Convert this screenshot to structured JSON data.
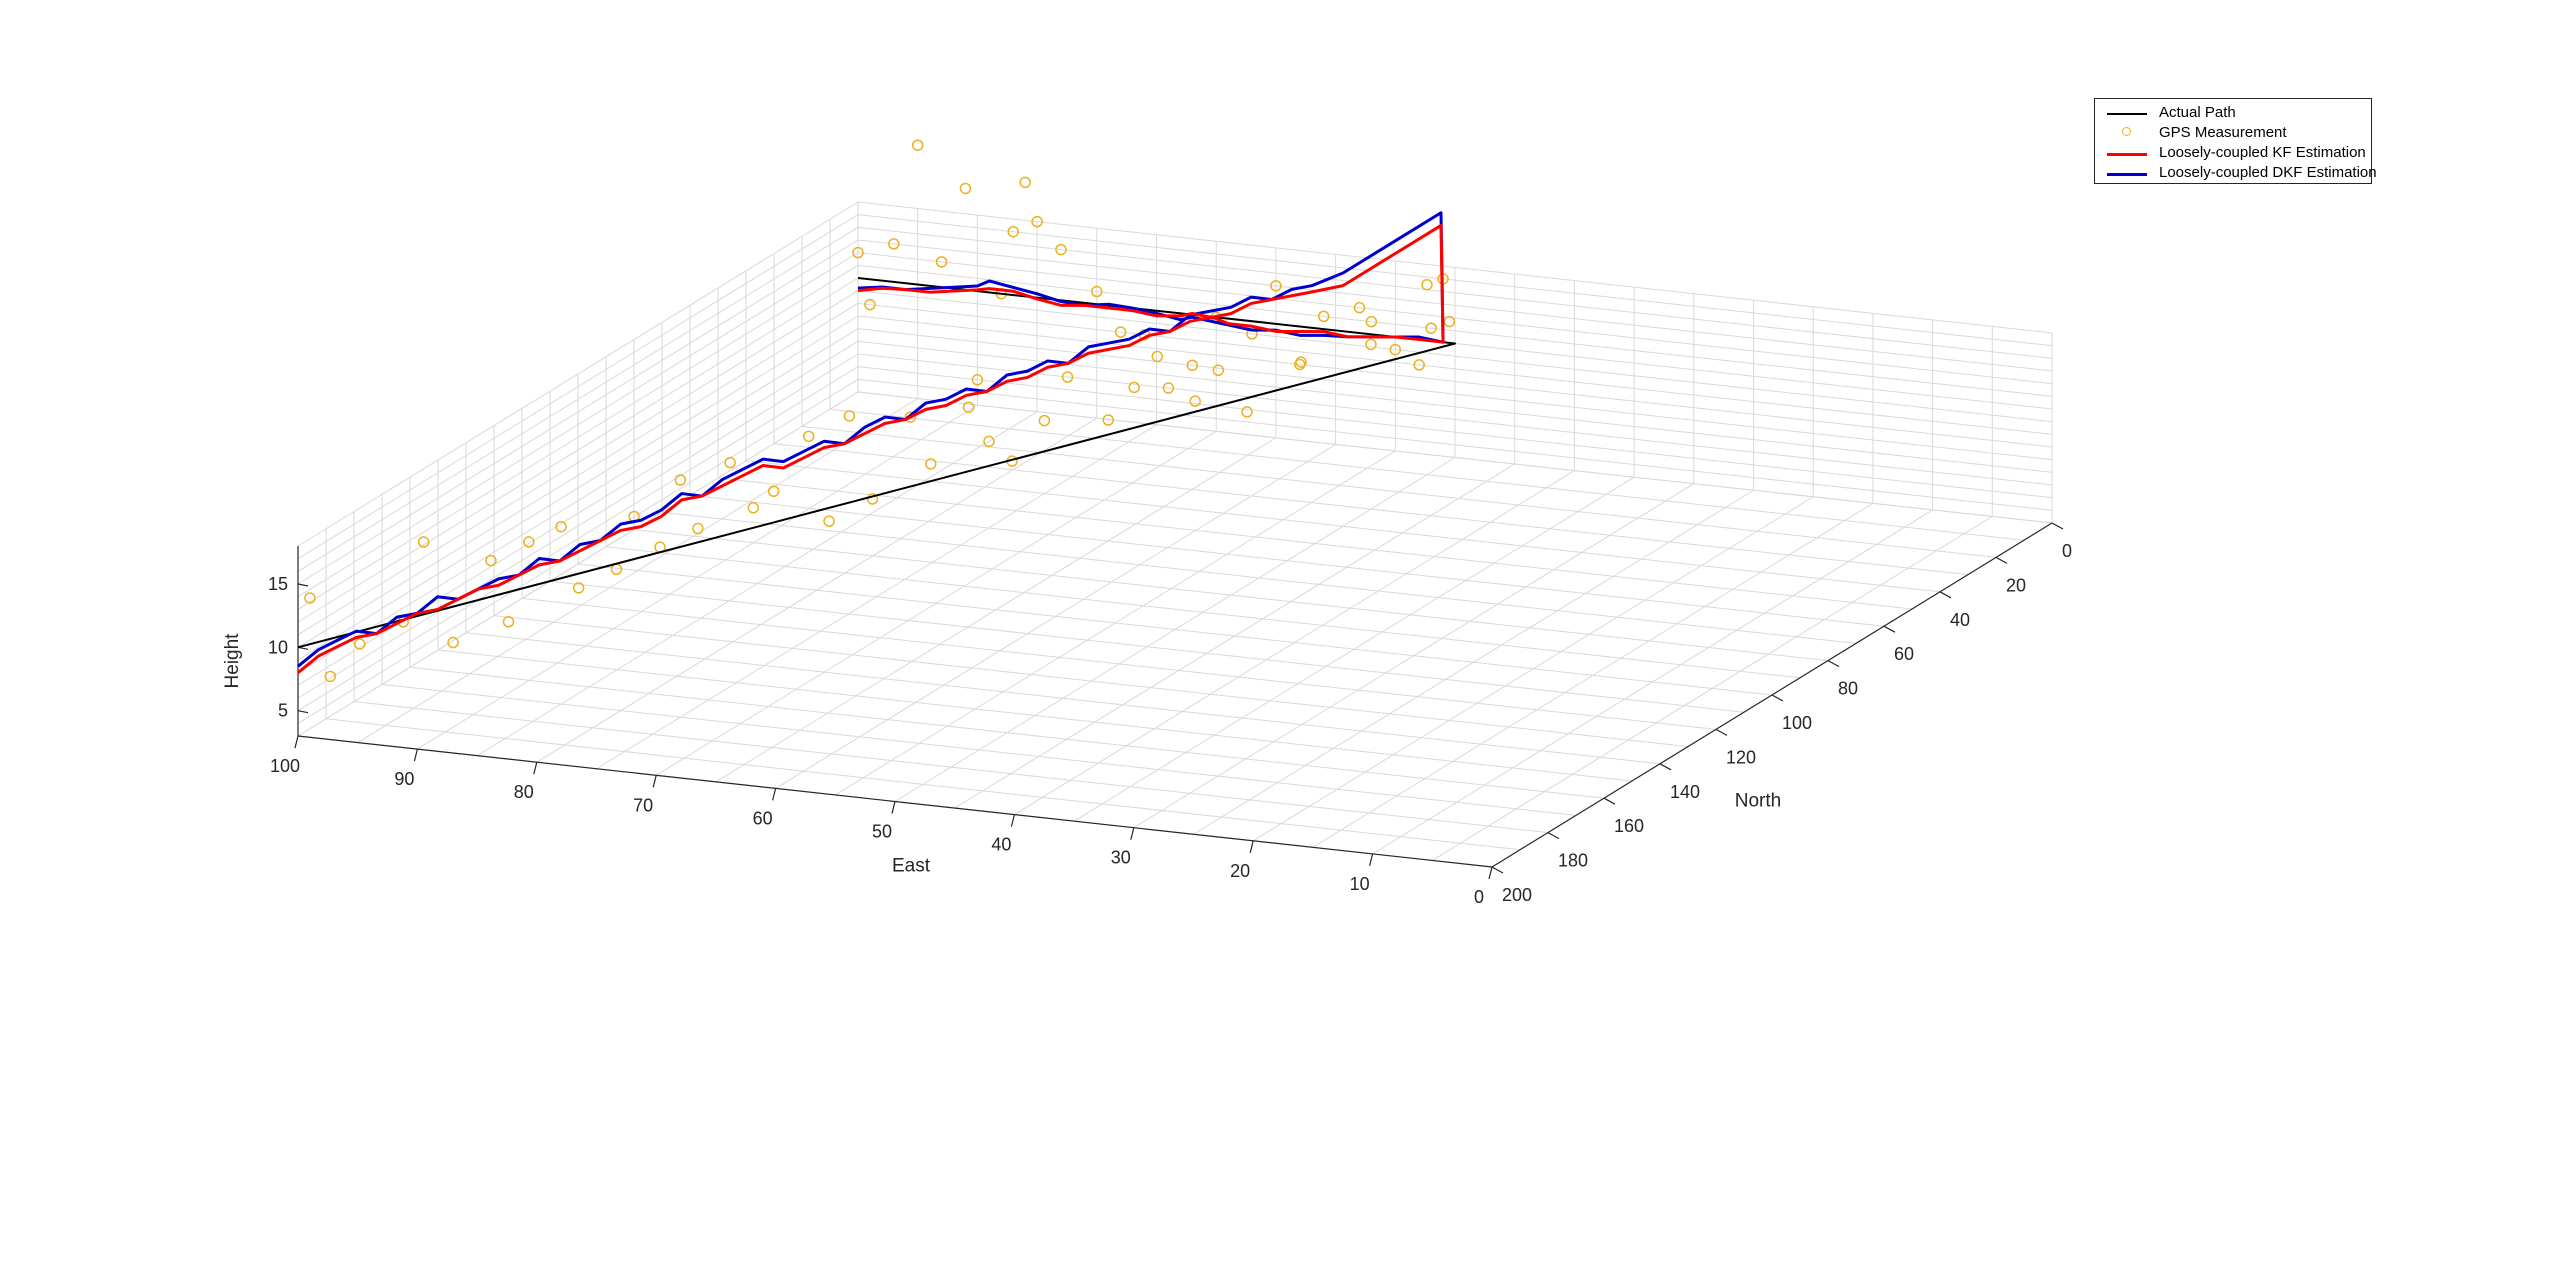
{
  "chart_data": {
    "type": "line",
    "projection": "3d",
    "xlabel": "East",
    "ylabel": "North",
    "zlabel": "Height",
    "xlim": [
      0,
      100
    ],
    "ylim": [
      0,
      200
    ],
    "zlim": [
      3,
      18
    ],
    "xticks": [
      "100",
      "90",
      "80",
      "70",
      "60",
      "50",
      "40",
      "30",
      "20",
      "10",
      "0"
    ],
    "yticks": [
      "0",
      "20",
      "40",
      "60",
      "80",
      "100",
      "120",
      "140",
      "160",
      "180",
      "200"
    ],
    "zticks": [
      "5",
      "10",
      "15"
    ],
    "grid": true,
    "legend_placement": "top-right",
    "colors": {
      "actual": "#000000",
      "gps": "#edb120",
      "kf": "#ff0000",
      "dkf": "#0000cc",
      "grid": "#d9d9d9",
      "axis": "#262626"
    },
    "series": [
      {
        "name": "Actual Path",
        "points": [
          [
            100,
            200,
            10
          ],
          [
            50,
            0,
            12
          ],
          [
            100,
            0,
            12
          ]
        ]
      },
      {
        "name": "GPS Measurement",
        "points": [
          [
            99,
            200,
            14
          ],
          [
            98,
            197,
            7.5
          ],
          [
            96,
            195,
            10
          ],
          [
            94,
            188,
            11
          ],
          [
            93,
            185,
            17
          ],
          [
            91,
            183,
            9
          ],
          [
            89,
            178,
            15
          ],
          [
            88,
            176,
            10
          ],
          [
            87,
            173,
            16
          ],
          [
            85,
            170,
            17
          ],
          [
            84,
            168,
            12
          ],
          [
            82,
            163,
            13
          ],
          [
            81,
            161,
            17
          ],
          [
            80,
            156,
            14
          ],
          [
            79,
            153,
            19
          ],
          [
            78,
            151,
            15
          ],
          [
            76,
            148,
            20
          ],
          [
            75,
            144,
            16
          ],
          [
            74,
            141,
            17
          ],
          [
            72,
            137,
            21
          ],
          [
            71,
            134,
            14
          ],
          [
            70,
            131,
            22
          ],
          [
            69,
            127,
            15
          ],
          [
            67,
            122,
            21
          ],
          [
            66,
            119,
            17
          ],
          [
            64,
            114,
            21
          ],
          [
            63,
            111,
            18
          ],
          [
            62,
            107,
            16
          ],
          [
            60,
            104,
            19
          ],
          [
            59,
            100,
            22
          ],
          [
            57,
            94,
            18
          ],
          [
            56,
            89,
            20
          ],
          [
            55,
            85,
            22
          ],
          [
            53,
            80,
            18
          ],
          [
            52,
            76,
            20
          ],
          [
            51,
            70,
            16
          ],
          [
            50,
            55,
            18
          ],
          [
            50,
            30,
            16
          ],
          [
            50,
            10,
            18
          ],
          [
            50,
            2,
            14
          ],
          [
            51,
            0,
            17
          ],
          [
            52,
            0,
            13
          ],
          [
            53,
            0,
            10
          ],
          [
            55,
            0,
            11
          ],
          [
            57,
            0,
            13
          ],
          [
            58,
            0,
            14
          ],
          [
            61,
            0,
            13
          ],
          [
            63,
            0,
            9
          ],
          [
            65,
            0,
            15
          ],
          [
            67,
            0,
            11
          ],
          [
            70,
            0,
            12
          ],
          [
            72,
            0,
            8
          ],
          [
            74,
            0,
            6
          ],
          [
            76,
            0,
            10
          ],
          [
            78,
            0,
            10
          ],
          [
            80,
            0,
            13
          ],
          [
            83,
            0,
            16
          ],
          [
            85,
            0,
            18
          ],
          [
            87,
            0,
            17
          ],
          [
            88,
            0,
            12
          ],
          [
            90,
            0,
            5
          ],
          [
            91,
            0,
            20
          ],
          [
            93,
            0,
            14
          ],
          [
            95,
            0,
            23
          ],
          [
            97,
            0,
            15
          ],
          [
            99,
            0,
            10
          ],
          [
            100,
            0,
            14
          ],
          [
            86,
            0,
            21
          ]
        ]
      },
      {
        "name": "Loosely-coupled KF Estimation",
        "points": [
          [
            100,
            200,
            8
          ],
          [
            99,
            197,
            9
          ],
          [
            98,
            194,
            9.5
          ],
          [
            97,
            192,
            10
          ],
          [
            96,
            189,
            10
          ],
          [
            95,
            186,
            10.5
          ],
          [
            94,
            183,
            11
          ],
          [
            93,
            180,
            11
          ],
          [
            92,
            177,
            11.5
          ],
          [
            91,
            174,
            12
          ],
          [
            90,
            171,
            12
          ],
          [
            89,
            168,
            12.5
          ],
          [
            88,
            165,
            13
          ],
          [
            87,
            162,
            13
          ],
          [
            86,
            159,
            13.5
          ],
          [
            85,
            156,
            14
          ],
          [
            84,
            153,
            14.5
          ],
          [
            83,
            150,
            14.5
          ],
          [
            82,
            147,
            15
          ],
          [
            81,
            144,
            16
          ],
          [
            80,
            141,
            16
          ],
          [
            79,
            138,
            16.5
          ],
          [
            78,
            135,
            17
          ],
          [
            77,
            132,
            17.5
          ],
          [
            76,
            129,
            17
          ],
          [
            75,
            126,
            17.5
          ],
          [
            74,
            123,
            18
          ],
          [
            73,
            120,
            18
          ],
          [
            72,
            117,
            18.5
          ],
          [
            71,
            114,
            19
          ],
          [
            70,
            111,
            19
          ],
          [
            69,
            108,
            19.5
          ],
          [
            68,
            105,
            19.5
          ],
          [
            67,
            102,
            20
          ],
          [
            66,
            99,
            20
          ],
          [
            65,
            96,
            20.5
          ],
          [
            64,
            93,
            20.5
          ],
          [
            63,
            90,
            21
          ],
          [
            62,
            87,
            21
          ],
          [
            61,
            84,
            21.5
          ],
          [
            60,
            81,
            21.5
          ],
          [
            59,
            78,
            21.5
          ],
          [
            58,
            75,
            22
          ],
          [
            57,
            72,
            22
          ],
          [
            56,
            69,
            22.5
          ],
          [
            55,
            66,
            22.5
          ],
          [
            54,
            63,
            22.5
          ],
          [
            53,
            60,
            23
          ],
          [
            52,
            57,
            23
          ],
          [
            51,
            54,
            23
          ],
          [
            50,
            51,
            23
          ],
          [
            50,
            40,
            22
          ],
          [
            50,
            20,
            22
          ],
          [
            50,
            5,
            22
          ],
          [
            51,
            0,
            12
          ],
          [
            53,
            0,
            12
          ],
          [
            55,
            0,
            12
          ],
          [
            57,
            0,
            11.8
          ],
          [
            59,
            0,
            11.6
          ],
          [
            61,
            0,
            11.8
          ],
          [
            63,
            0,
            11.6
          ],
          [
            65,
            0,
            11.4
          ],
          [
            67,
            0,
            11.6
          ],
          [
            69,
            0,
            11.6
          ],
          [
            70,
            0,
            11.9
          ],
          [
            72,
            0,
            12.1
          ],
          [
            73,
            0,
            11.8
          ],
          [
            75,
            0,
            11.6
          ],
          [
            77,
            0,
            11.8
          ],
          [
            79,
            0,
            11.8
          ],
          [
            81,
            0,
            11.8
          ],
          [
            83,
            0,
            11.6
          ],
          [
            85,
            0,
            11.9
          ],
          [
            87,
            0,
            12.3
          ],
          [
            89,
            0,
            12.3
          ],
          [
            90,
            0,
            12.1
          ],
          [
            92,
            0,
            11.8
          ],
          [
            94,
            0,
            11.5
          ],
          [
            96,
            0,
            11.5
          ],
          [
            98,
            0,
            11.4
          ],
          [
            100,
            0,
            11
          ]
        ]
      },
      {
        "name": "Loosely-coupled DKF Estimation",
        "points": [
          [
            100,
            200,
            8.5
          ],
          [
            99,
            197,
            9.5
          ],
          [
            98,
            194,
            10
          ],
          [
            97,
            192,
            10.5
          ],
          [
            96,
            189,
            10
          ],
          [
            95,
            186,
            11
          ],
          [
            94,
            183,
            11
          ],
          [
            93,
            180,
            12
          ],
          [
            92,
            177,
            11.5
          ],
          [
            91,
            174,
            12
          ],
          [
            90,
            171,
            12.5
          ],
          [
            89,
            168,
            12.5
          ],
          [
            88,
            165,
            13.5
          ],
          [
            87,
            162,
            13
          ],
          [
            86,
            159,
            14
          ],
          [
            85,
            156,
            14
          ],
          [
            84,
            153,
            15
          ],
          [
            83,
            150,
            15
          ],
          [
            82,
            147,
            15.5
          ],
          [
            81,
            144,
            16.5
          ],
          [
            80,
            141,
            16
          ],
          [
            79,
            138,
            17
          ],
          [
            78,
            135,
            17.5
          ],
          [
            77,
            132,
            18
          ],
          [
            76,
            129,
            17.5
          ],
          [
            75,
            126,
            18
          ],
          [
            74,
            123,
            18.5
          ],
          [
            73,
            120,
            18
          ],
          [
            72,
            117,
            19
          ],
          [
            71,
            114,
            19.5
          ],
          [
            70,
            111,
            19
          ],
          [
            69,
            108,
            20
          ],
          [
            68,
            105,
            20
          ],
          [
            67,
            102,
            20.5
          ],
          [
            66,
            99,
            20
          ],
          [
            65,
            96,
            21
          ],
          [
            64,
            93,
            21
          ],
          [
            63,
            90,
            21.5
          ],
          [
            62,
            87,
            21
          ],
          [
            61,
            84,
            22
          ],
          [
            60,
            81,
            22
          ],
          [
            59,
            78,
            22
          ],
          [
            58,
            75,
            22.5
          ],
          [
            57,
            72,
            22
          ],
          [
            56,
            69,
            23
          ],
          [
            55,
            66,
            23
          ],
          [
            54,
            63,
            23
          ],
          [
            53,
            60,
            23.5
          ],
          [
            52,
            57,
            23
          ],
          [
            51,
            54,
            23.5
          ],
          [
            50,
            51,
            23.5
          ],
          [
            50,
            40,
            23
          ],
          [
            50,
            20,
            23
          ],
          [
            50,
            5,
            23
          ],
          [
            51,
            0,
            12
          ],
          [
            53,
            0,
            12.2
          ],
          [
            55,
            0,
            12
          ],
          [
            57,
            0,
            11.8
          ],
          [
            59,
            0,
            11.6
          ],
          [
            61,
            0,
            11.5
          ],
          [
            63,
            0,
            11.3
          ],
          [
            65,
            0,
            11.5
          ],
          [
            67,
            0,
            11.3
          ],
          [
            69,
            0,
            11.5
          ],
          [
            70,
            0,
            11.6
          ],
          [
            72,
            0,
            11.8
          ],
          [
            73,
            0,
            11.5
          ],
          [
            75,
            0,
            11.8
          ],
          [
            77,
            0,
            12
          ],
          [
            79,
            0,
            12.1
          ],
          [
            81,
            0,
            11.8
          ],
          [
            83,
            0,
            11.9
          ],
          [
            85,
            0,
            12.3
          ],
          [
            87,
            0,
            12.6
          ],
          [
            89,
            0,
            12.9
          ],
          [
            90,
            0,
            12.4
          ],
          [
            92,
            0,
            12.1
          ],
          [
            94,
            0,
            11.8
          ],
          [
            96,
            0,
            11.5
          ],
          [
            98,
            0,
            11.5
          ],
          [
            100,
            0,
            11.2
          ]
        ]
      }
    ]
  }
}
